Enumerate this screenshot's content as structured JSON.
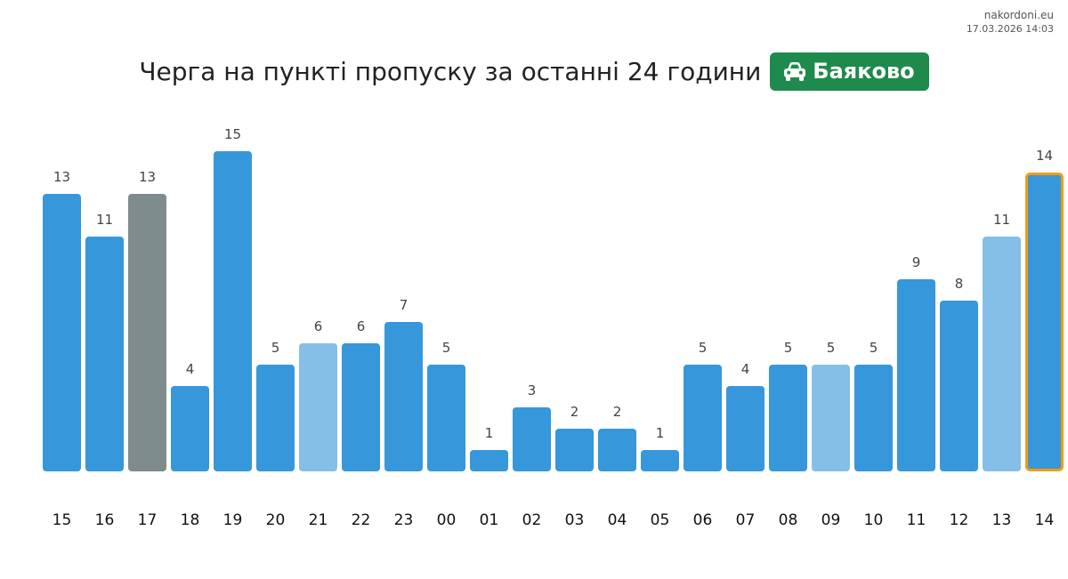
{
  "watermark": {
    "site": "nakordoni.eu",
    "timestamp": "17.03.2026 14:03"
  },
  "header": {
    "title": "Черга на пункті пропуску за останні 24 години",
    "badge_label": "Баяково",
    "badge_icon": "car-icon",
    "badge_color": "#1e8a4c"
  },
  "colors": {
    "bar_default": "#3797db",
    "bar_light": "#85bfe8",
    "bar_gray": "#7f8c8d",
    "bar_current_outline": "#f39c12"
  },
  "chart_data": {
    "type": "bar",
    "title": "Черга на пункті пропуску за останні 24 години",
    "xlabel": "",
    "ylabel": "",
    "categories": [
      "15",
      "16",
      "17",
      "18",
      "19",
      "20",
      "21",
      "22",
      "23",
      "00",
      "01",
      "02",
      "03",
      "04",
      "05",
      "06",
      "07",
      "08",
      "09",
      "10",
      "11",
      "12",
      "13",
      "14"
    ],
    "values": [
      13,
      11,
      13,
      4,
      15,
      5,
      6,
      6,
      7,
      5,
      1,
      3,
      2,
      2,
      1,
      5,
      4,
      5,
      5,
      5,
      9,
      8,
      11,
      14
    ],
    "bar_styles": [
      "default",
      "default",
      "gray",
      "default",
      "default",
      "default",
      "light",
      "default",
      "default",
      "default",
      "default",
      "default",
      "default",
      "default",
      "default",
      "default",
      "default",
      "default",
      "light",
      "default",
      "default",
      "default",
      "light",
      "current"
    ],
    "ylim": [
      0,
      15
    ],
    "grid": false,
    "data_labels": true
  }
}
